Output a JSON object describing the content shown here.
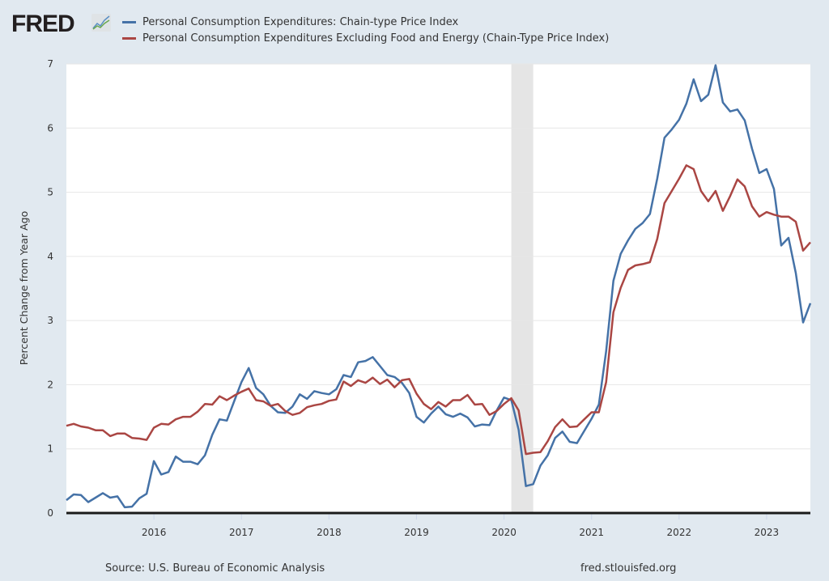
{
  "header": {
    "logo_text": "FRED",
    "logo_icon": "chart-line-icon"
  },
  "footer": {
    "source": "Source: U.S. Bureau of Economic Analysis",
    "url": "fred.stlouisfed.org"
  },
  "chart_data": {
    "type": "line",
    "title": "",
    "xlabel": "",
    "ylabel": "Percent Change from Year Ago",
    "ylim": [
      0,
      7
    ],
    "xlim": [
      "2015-01",
      "2023-07"
    ],
    "yticks": [
      0,
      1,
      2,
      3,
      4,
      5,
      6,
      7
    ],
    "xticks": [
      "2016",
      "2017",
      "2018",
      "2019",
      "2020",
      "2021",
      "2022",
      "2023"
    ],
    "grid": true,
    "legend_position": "top-left",
    "recession_shading": {
      "start": "2020-02",
      "end": "2020-04"
    },
    "x_start": "2015-01",
    "frequency": "monthly",
    "series": [
      {
        "name": "Personal Consumption Expenditures: Chain-type Price Index",
        "color": "#4572a7",
        "values": [
          0.2,
          0.29,
          0.28,
          0.17,
          0.24,
          0.31,
          0.24,
          0.26,
          0.09,
          0.1,
          0.23,
          0.3,
          0.81,
          0.6,
          0.64,
          0.88,
          0.8,
          0.8,
          0.76,
          0.9,
          1.22,
          1.46,
          1.44,
          1.74,
          2.04,
          2.26,
          1.95,
          1.85,
          1.67,
          1.57,
          1.56,
          1.66,
          1.85,
          1.78,
          1.9,
          1.87,
          1.85,
          1.93,
          2.15,
          2.12,
          2.35,
          2.37,
          2.43,
          2.29,
          2.15,
          2.12,
          2.03,
          1.87,
          1.5,
          1.41,
          1.55,
          1.66,
          1.54,
          1.5,
          1.55,
          1.49,
          1.35,
          1.38,
          1.37,
          1.6,
          1.8,
          1.76,
          1.3,
          0.42,
          0.45,
          0.74,
          0.9,
          1.17,
          1.27,
          1.11,
          1.09,
          1.28,
          1.47,
          1.69,
          2.52,
          3.62,
          4.04,
          4.25,
          4.43,
          4.52,
          4.66,
          5.21,
          5.85,
          5.98,
          6.13,
          6.38,
          6.76,
          6.42,
          6.52,
          6.98,
          6.4,
          6.26,
          6.29,
          6.12,
          5.68,
          5.3,
          5.36,
          5.05,
          4.17,
          4.29,
          3.74,
          2.97,
          3.27
        ]
      },
      {
        "name": "Personal Consumption Expenditures Excluding Food and Energy (Chain-Type Price Index)",
        "color": "#aa4643",
        "values": [
          1.36,
          1.39,
          1.35,
          1.33,
          1.29,
          1.29,
          1.2,
          1.24,
          1.24,
          1.17,
          1.16,
          1.14,
          1.33,
          1.39,
          1.38,
          1.46,
          1.5,
          1.5,
          1.58,
          1.7,
          1.69,
          1.82,
          1.76,
          1.83,
          1.89,
          1.94,
          1.76,
          1.74,
          1.67,
          1.7,
          1.59,
          1.53,
          1.56,
          1.65,
          1.68,
          1.7,
          1.75,
          1.77,
          2.05,
          1.98,
          2.07,
          2.03,
          2.11,
          2.01,
          2.08,
          1.96,
          2.07,
          2.09,
          1.86,
          1.7,
          1.62,
          1.73,
          1.66,
          1.76,
          1.76,
          1.84,
          1.69,
          1.7,
          1.53,
          1.59,
          1.7,
          1.79,
          1.6,
          0.92,
          0.94,
          0.95,
          1.12,
          1.34,
          1.46,
          1.34,
          1.35,
          1.46,
          1.57,
          1.57,
          2.04,
          3.13,
          3.51,
          3.79,
          3.86,
          3.88,
          3.91,
          4.27,
          4.83,
          5.02,
          5.21,
          5.42,
          5.36,
          5.02,
          4.86,
          5.02,
          4.71,
          4.94,
          5.2,
          5.09,
          4.78,
          4.62,
          4.69,
          4.65,
          4.62,
          4.62,
          4.54,
          4.09,
          4.22
        ]
      }
    ]
  }
}
